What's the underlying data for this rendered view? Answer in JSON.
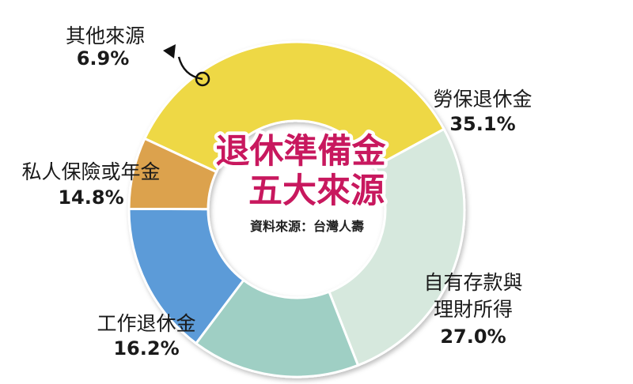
{
  "chart_data": {
    "type": "pie",
    "title_line1": "退休準備金",
    "title_line2": "五大來源",
    "source": "資料來源：台灣人壽",
    "slices": [
      {
        "name": "勞保退休金",
        "value_label": "35.1%",
        "value": 35.1,
        "color": "#eed844"
      },
      {
        "name_line1": "自有存款與",
        "name_line2": "理財所得",
        "value_label": "27.0%",
        "value": 27.0,
        "color": "#d6e8dd"
      },
      {
        "name": "工作退休金",
        "value_label": "16.2%",
        "value": 16.2,
        "color": "#9fcfc4"
      },
      {
        "name": "私人保險或年金",
        "value_label": "14.8%",
        "value": 14.8,
        "color": "#5b9bd8"
      },
      {
        "name": "其他來源",
        "value_label": "6.9%",
        "value": 6.9,
        "color": "#dca24e"
      }
    ]
  }
}
